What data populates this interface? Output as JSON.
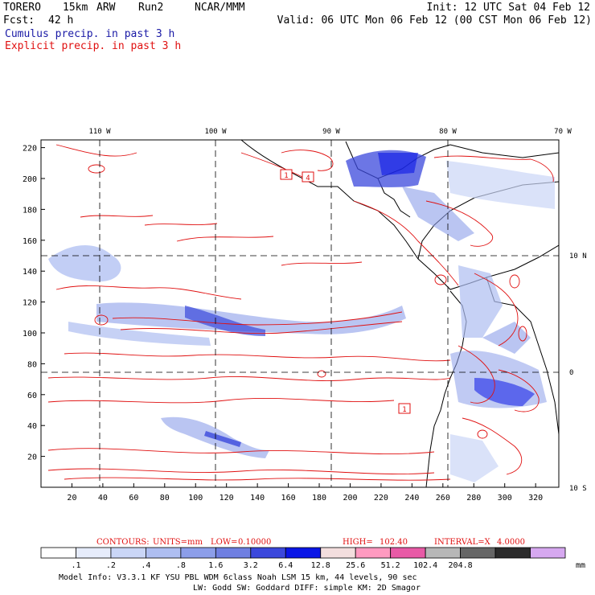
{
  "header": {
    "model_name": "TORERO",
    "resolution": "15km",
    "model_type": "ARW",
    "run": "Run2",
    "center": "NCAR/MMM",
    "init": "Init: 12 UTC Sat 04 Feb 12",
    "fcst_label": "Fcst:",
    "fcst_value": "42 h",
    "valid": "Valid: 06 UTC Mon 06 Feb 12 (00 CST Mon 06 Feb 12)",
    "field1": "Cumulus precip. in past 3 h",
    "field2": "Explicit precip. in past 3 h"
  },
  "map": {
    "top_lon_labels": [
      "110 W",
      "100 W",
      "90 W",
      "80 W",
      "70 W"
    ],
    "right_lat_labels": [
      "10 N",
      "0",
      "10 S"
    ],
    "y_ticks": [
      "220",
      "200",
      "180",
      "160",
      "140",
      "120",
      "100",
      "80",
      "60",
      "40",
      "20"
    ],
    "x_ticks": [
      "20",
      "40",
      "60",
      "80",
      "100",
      "120",
      "140",
      "160",
      "180",
      "200",
      "220",
      "240",
      "260",
      "280",
      "300",
      "320"
    ],
    "box_labels": [
      "1",
      "4",
      "1"
    ]
  },
  "contours": {
    "label_contours": "CONTOURS:",
    "label_units": "UNITS=mm",
    "label_low": "LOW=",
    "low": "0.10000",
    "label_high": "HIGH=",
    "high": "102.40",
    "label_interval": "INTERVAL=X",
    "interval": "4.0000"
  },
  "colorbar": {
    "colors": [
      "#ffffff",
      "#e6ecfb",
      "#cad6f6",
      "#aebef1",
      "#8c9ee9",
      "#6f7fe1",
      "#3b48dc",
      "#0a16e6",
      "#f3dede",
      "#ff9ac0",
      "#e85aa6",
      "#b7b7b7",
      "#666666",
      "#2b2b2b",
      "#d6a8f0"
    ],
    "labels": [
      ".1",
      ".2",
      ".4",
      ".8",
      "1.6",
      "3.2",
      "6.4",
      "12.8",
      "25.6",
      "51.2",
      "102.4",
      "204.8"
    ],
    "unit": "mm"
  },
  "chart_data": {
    "type": "map",
    "title": "Cumulus precip. in past 3 h / Explicit precip. in past 3 h",
    "units": "mm",
    "contour_low": 0.1,
    "contour_high": 102.4,
    "contour_interval_factor": 4.0,
    "grid_x_range": [
      0,
      335
    ],
    "grid_y_range": [
      0,
      225
    ],
    "shading_levels": [
      0.1,
      0.2,
      0.4,
      0.8,
      1.6,
      3.2,
      6.4,
      12.8,
      25.6,
      51.2,
      102.4,
      204.8
    ]
  },
  "footer": {
    "line1": "Model Info: V3.3.1    KF     YSU PBL  WDM 6class  Noah LSM  15 km,   44 levels,   90 sec",
    "line2": "LW: Godd SW: Goddard DIFF: simple KM: 2D Smagor"
  }
}
